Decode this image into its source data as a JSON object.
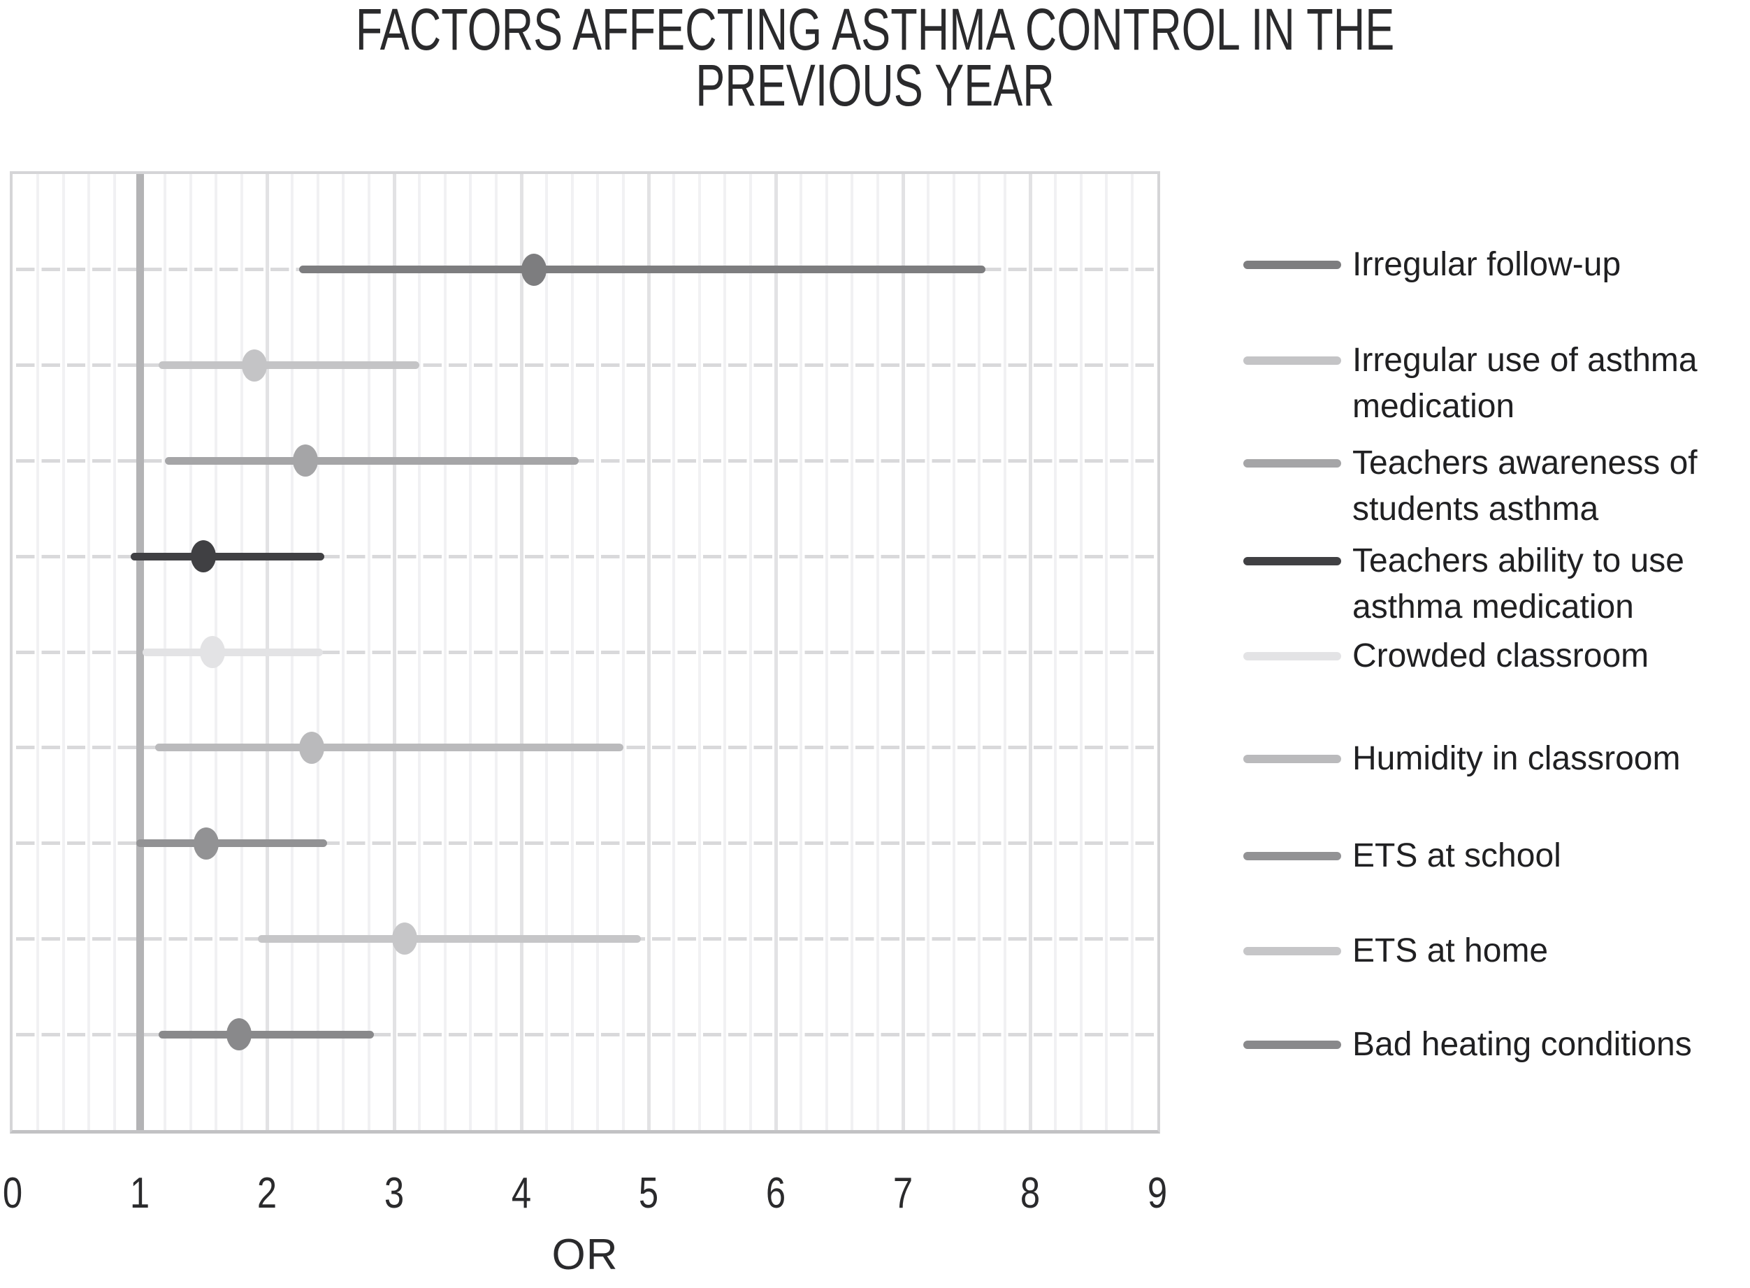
{
  "title": {
    "line1": "FACTORS AFFECTING ASTHMA CONTROL IN THE",
    "line2": "PREVIOUS YEAR"
  },
  "x_axis": {
    "label": "OR",
    "min": 0,
    "max": 9,
    "minor_step": 0.2,
    "major_step": 1,
    "reference_line_x": 1,
    "ticks": [
      0,
      1,
      2,
      3,
      4,
      5,
      6,
      7,
      8,
      9
    ]
  },
  "chart_data": {
    "type": "scatter",
    "subtype": "forest-plot",
    "title": "FACTORS AFFECTING ASTHMA CONTROL IN THE PREVIOUS YEAR",
    "xlabel": "OR",
    "xlim": [
      0,
      9
    ],
    "grid": true,
    "legend_position": "right",
    "reference_line": 1,
    "series": [
      {
        "name": "Irregular follow-up",
        "or": 4.1,
        "ci_low": 2.25,
        "ci_high": 7.65,
        "color": "#7d7d7f"
      },
      {
        "name": "Irregular use of asthma medication",
        "or": 1.9,
        "ci_low": 1.15,
        "ci_high": 3.2,
        "color": "#c4c4c6"
      },
      {
        "name": "Teachers awareness of students asthma",
        "or": 2.3,
        "ci_low": 1.2,
        "ci_high": 4.45,
        "color": "#a5a5a7"
      },
      {
        "name": "Teachers ability to use asthma medication",
        "or": 1.5,
        "ci_low": 0.93,
        "ci_high": 2.45,
        "color": "#404043"
      },
      {
        "name": "Crowded classroom",
        "or": 1.57,
        "ci_low": 1.02,
        "ci_high": 2.44,
        "color": "#e3e3e5"
      },
      {
        "name": "Humidity in classroom",
        "or": 2.35,
        "ci_low": 1.12,
        "ci_high": 4.8,
        "color": "#bababc"
      },
      {
        "name": "ETS at school",
        "or": 1.52,
        "ci_low": 0.97,
        "ci_high": 2.47,
        "color": "#929294"
      },
      {
        "name": "ETS at home",
        "or": 3.08,
        "ci_low": 1.93,
        "ci_high": 4.94,
        "color": "#c6c6c8"
      },
      {
        "name": "Bad heating conditions",
        "or": 1.78,
        "ci_low": 1.15,
        "ci_high": 2.84,
        "color": "#89898b"
      }
    ]
  },
  "colors": {
    "background": "#ffffff",
    "plot_border": "#d5d5d7",
    "plot_border_bottom": "#c2c2c4",
    "grid_minor": "#f1f1f3",
    "grid_major": "#e2e2e4",
    "grid_horizontal": "#d9d9db",
    "reference_line": "#b3b3b5",
    "title_text": "#2a2a2c",
    "axis_text": "#2a2a2c",
    "legend_text": "#202022"
  }
}
